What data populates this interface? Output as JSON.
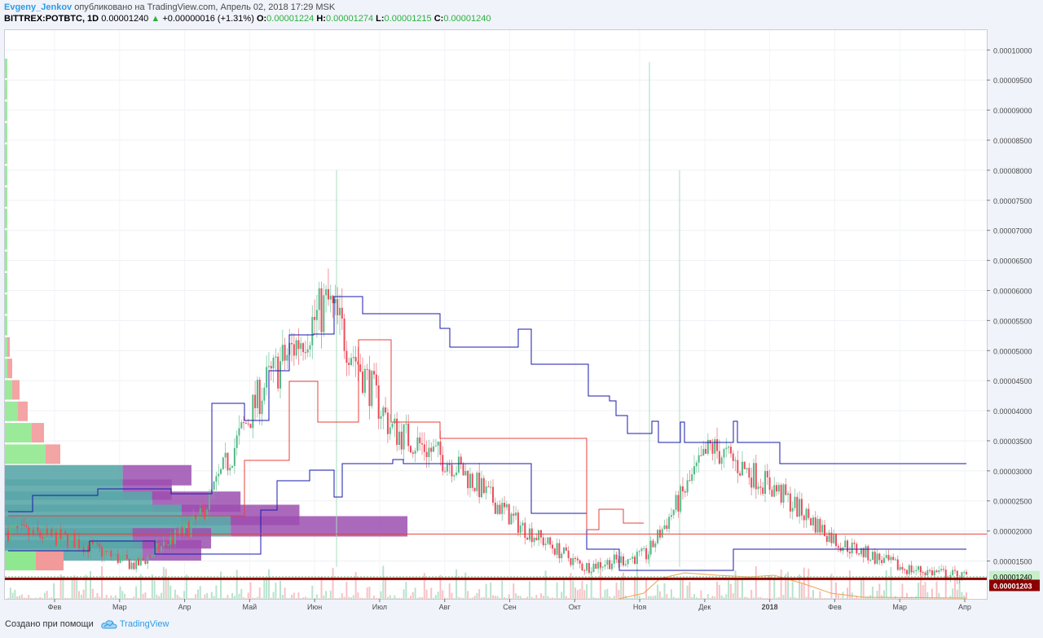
{
  "header": {
    "author": "Evgeny_Jenkov",
    "published": "опубликовано на TradingView.com, Апрель 02, 2018 17:29 MSK",
    "symbol": "BITTREX:POTBTC, 1D",
    "price": "0.00001240",
    "change": "+0.00000016 (+1.31%)",
    "o_label": "O:",
    "o_value": "0.00001224",
    "h_label": "H:",
    "h_value": "0.00001274",
    "l_label": "L:",
    "l_value": "0.00001215",
    "c_label": "C:",
    "c_value": "0.00001240"
  },
  "footer": {
    "created": "Создано при помощи",
    "brand": "TradingView"
  },
  "colors": {
    "up": "#53b987",
    "down": "#eb4d5c",
    "blue": "#1a1ab0",
    "red": "#e8403b",
    "support": "#8b0000"
  },
  "chart_data": {
    "type": "candlestick",
    "symbol": "BITTREX:POTBTC",
    "interval": "1D",
    "ylim": [
      8.7e-06,
      0.0001033
    ],
    "x_ticks": [
      "Фев",
      "Мар",
      "Апр",
      "Май",
      "Июн",
      "Июл",
      "Авг",
      "Сен",
      "Окт",
      "Ноя",
      "Дек",
      "2018",
      "Фев",
      "Мар",
      "Апр"
    ],
    "y_ticks": [
      "0.00010000",
      "0.00009500",
      "0.00009000",
      "0.00008500",
      "0.00008000",
      "0.00007500",
      "0.00007000",
      "0.00006500",
      "0.00006000",
      "0.00005500",
      "0.00005000",
      "0.00004500",
      "0.00004000",
      "0.00003500",
      "0.00003000",
      "0.00002500",
      "0.00002000",
      "0.00001500"
    ],
    "last_price_label": "0.00001240",
    "support_label": "0.00001203",
    "horizontal_lines": [
      {
        "name": "resistance",
        "value": 1.95e-05,
        "color": "#e8403b"
      },
      {
        "name": "support",
        "value": 1.203e-05,
        "color": "#8b0000"
      }
    ],
    "close_series": [
      [
        "Янв 2017",
        2e-05
      ],
      [
        "Фев 2017",
        1.85e-05
      ],
      [
        "Мар 2017",
        1.42e-05
      ],
      [
        "Апр 2017",
        2.2e-05
      ],
      [
        "Май 2017",
        4.4e-05
      ],
      [
        "Июн 2017",
        5.8e-05
      ],
      [
        "Июл 2017",
        3.7e-05
      ],
      [
        "Авг 2017",
        3.1e-05
      ],
      [
        "Сен 2017",
        2.1e-05
      ],
      [
        "Окт 2017",
        1.4e-05
      ],
      [
        "Ноя 2017",
        1.6e-05
      ],
      [
        "Дек 2017",
        3.4e-05
      ],
      [
        "2018",
        2.7e-05
      ],
      [
        "Фев 2018",
        1.8e-05
      ],
      [
        "Мар 2018",
        1.38e-05
      ],
      [
        "Апр 2018",
        1.24e-05
      ]
    ],
    "volume_profile": [
      {
        "price": 2.92e-05,
        "up": 12,
        "down": 7
      },
      {
        "price": 2.68e-05,
        "up": 12,
        "down": 5
      },
      {
        "price": 2.48e-05,
        "up": 15,
        "down": 9
      },
      {
        "price": 2.26e-05,
        "up": 18,
        "down": 12
      },
      {
        "price": 2.07e-05,
        "up": 23,
        "down": 18
      },
      {
        "price": 1.87e-05,
        "up": 13,
        "down": 8
      },
      {
        "price": 1.67e-05,
        "up": 14,
        "down": 6
      }
    ]
  }
}
